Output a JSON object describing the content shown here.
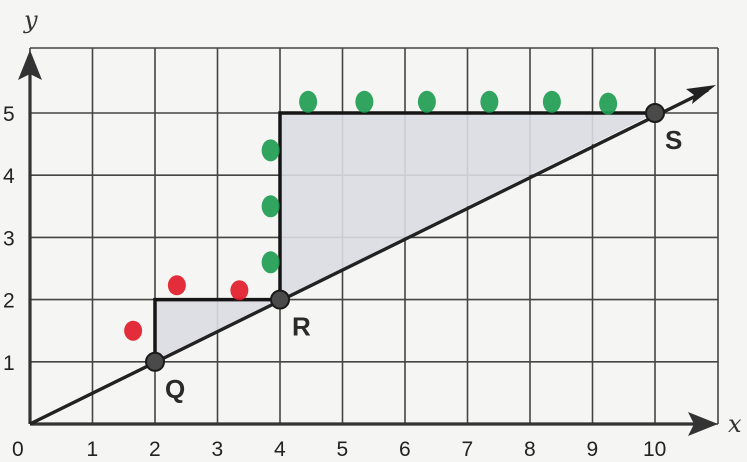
{
  "axes": {
    "x_label": "x",
    "y_label": "y",
    "x_ticks": [
      "0",
      "1",
      "2",
      "3",
      "4",
      "5",
      "6",
      "7",
      "8",
      "9",
      "10"
    ],
    "y_ticks": [
      "1",
      "2",
      "3",
      "4",
      "5"
    ],
    "xlim": [
      0,
      10.9
    ],
    "ylim": [
      0,
      5.9
    ]
  },
  "grid": true,
  "line": {
    "from": [
      0,
      0
    ],
    "to": [
      11,
      5.5
    ],
    "color": "#222222"
  },
  "points": [
    {
      "label": "Q",
      "x": 2,
      "y": 1
    },
    {
      "label": "R",
      "x": 4,
      "y": 2
    },
    {
      "label": "S",
      "x": 10,
      "y": 5
    }
  ],
  "triangles": [
    {
      "vertices": [
        [
          2,
          1
        ],
        [
          2,
          2
        ],
        [
          4,
          2
        ]
      ],
      "fill": "#dcdde3"
    },
    {
      "vertices": [
        [
          4,
          2
        ],
        [
          4,
          5
        ],
        [
          10,
          5
        ]
      ],
      "fill": "#dcdde3"
    }
  ],
  "red_marks": [
    [
      1.65,
      1.5
    ],
    [
      2.35,
      2.23
    ],
    [
      3.35,
      2.15
    ]
  ],
  "green_marks": [
    [
      4.45,
      5.18
    ],
    [
      5.35,
      5.18
    ],
    [
      6.35,
      5.18
    ],
    [
      7.35,
      5.18
    ],
    [
      8.35,
      5.18
    ],
    [
      9.25,
      5.15
    ],
    [
      3.85,
      4.4
    ],
    [
      3.85,
      3.5
    ],
    [
      3.85,
      2.6
    ]
  ],
  "colors": {
    "red": "#e21b2a",
    "green": "#1f9c52",
    "axis": "#333333",
    "grid": "#444444"
  }
}
